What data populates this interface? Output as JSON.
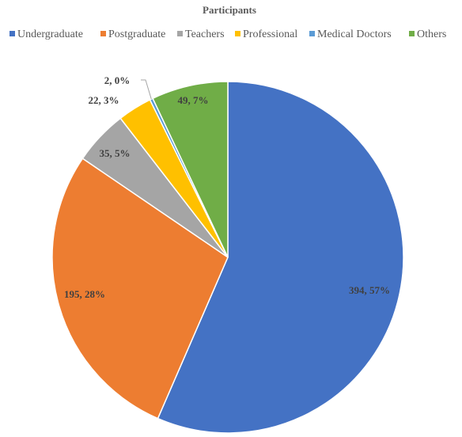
{
  "chart_data": {
    "type": "pie",
    "title": "Participants",
    "legend_position": "top",
    "categories": [
      "Undergraduate",
      "Postgraduate",
      "Teachers",
      "Professional",
      "Medical Doctors",
      "Others"
    ],
    "values": [
      394,
      195,
      35,
      22,
      2,
      49
    ],
    "data_labels": [
      "394, 57%",
      "195, 28%",
      "35, 5%",
      "22, 3%",
      "2, 0%",
      "49, 7%"
    ],
    "colors": [
      "#4472C4",
      "#ED7D31",
      "#A5A5A5",
      "#FFC000",
      "#5B9BD5",
      "#70AD47"
    ]
  }
}
